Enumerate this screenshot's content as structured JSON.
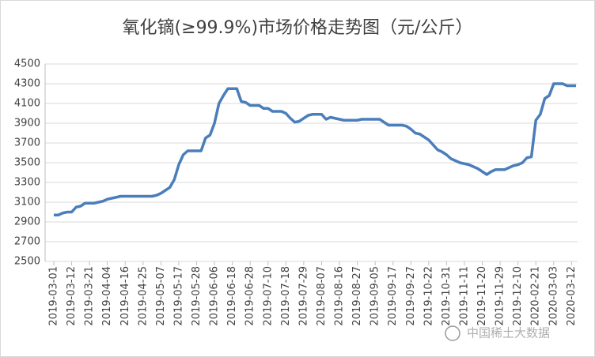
{
  "chart_data": {
    "type": "line",
    "title": "氧化镝(≥99.9%)市场价格走势图（元/公斤）",
    "watermark": "中国稀土大数据",
    "categories": [
      "2019-03-01",
      null,
      null,
      null,
      "2019-03-12",
      null,
      null,
      null,
      "2019-03-21",
      null,
      null,
      null,
      "2019-04-04",
      null,
      null,
      null,
      "2019-04-16",
      null,
      null,
      null,
      "2019-04-25",
      null,
      null,
      null,
      "2019-05-07",
      null,
      null,
      null,
      "2019-05-17",
      null,
      null,
      null,
      "2019-05-28",
      null,
      null,
      null,
      "2019-06-06",
      null,
      null,
      null,
      "2019-06-18",
      null,
      null,
      null,
      "2019-06-28",
      null,
      null,
      null,
      "2019-07-10",
      null,
      null,
      null,
      "2019-07-18",
      null,
      null,
      null,
      "2019-07-29",
      null,
      null,
      null,
      "2019-08-07",
      null,
      null,
      null,
      "2019-08-16",
      null,
      null,
      null,
      "2019-08-27",
      null,
      null,
      null,
      "2019-09-05",
      null,
      null,
      null,
      "2019-09-17",
      null,
      null,
      null,
      "2019-09-27",
      null,
      null,
      null,
      "2019-10-22",
      null,
      null,
      null,
      "2019-10-31",
      null,
      null,
      null,
      "2019-11-11",
      null,
      null,
      null,
      "2019-11-20",
      null,
      null,
      null,
      "2019-11-29",
      null,
      null,
      null,
      "2019-12-10",
      null,
      null,
      null,
      "2020-02-21",
      null,
      null,
      null,
      "2020-03-03",
      null,
      null,
      null,
      "2020-03-12",
      null
    ],
    "series": [
      {
        "name": "氧化镝",
        "color": "#4a7ebb",
        "values": [
          2970,
          2970,
          2990,
          3000,
          3000,
          3050,
          3060,
          3090,
          3090,
          3090,
          3100,
          3110,
          3130,
          3140,
          3150,
          3160,
          3160,
          3160,
          3160,
          3160,
          3160,
          3160,
          3160,
          3170,
          3190,
          3220,
          3250,
          3330,
          3480,
          3580,
          3620,
          3620,
          3620,
          3620,
          3750,
          3780,
          3900,
          4100,
          4180,
          4250,
          4250,
          4250,
          4120,
          4110,
          4080,
          4080,
          4080,
          4050,
          4050,
          4020,
          4020,
          4020,
          4000,
          3950,
          3910,
          3920,
          3950,
          3980,
          3990,
          3990,
          3990,
          3940,
          3960,
          3950,
          3940,
          3930,
          3930,
          3930,
          3930,
          3940,
          3940,
          3940,
          3940,
          3940,
          3910,
          3880,
          3880,
          3880,
          3880,
          3870,
          3840,
          3800,
          3790,
          3760,
          3730,
          3680,
          3630,
          3610,
          3580,
          3540,
          3520,
          3500,
          3490,
          3480,
          3460,
          3440,
          3410,
          3380,
          3410,
          3430,
          3430,
          3430,
          3450,
          3470,
          3480,
          3500,
          3550,
          3560,
          3930,
          3990,
          4150,
          4180,
          4300,
          4300,
          4300,
          4280,
          4280,
          4280
        ]
      }
    ],
    "ylim": [
      2500,
      4500
    ],
    "yticks": [
      2500,
      2700,
      2900,
      3100,
      3300,
      3500,
      3700,
      3900,
      4100,
      4300,
      4500
    ],
    "grid": true
  }
}
